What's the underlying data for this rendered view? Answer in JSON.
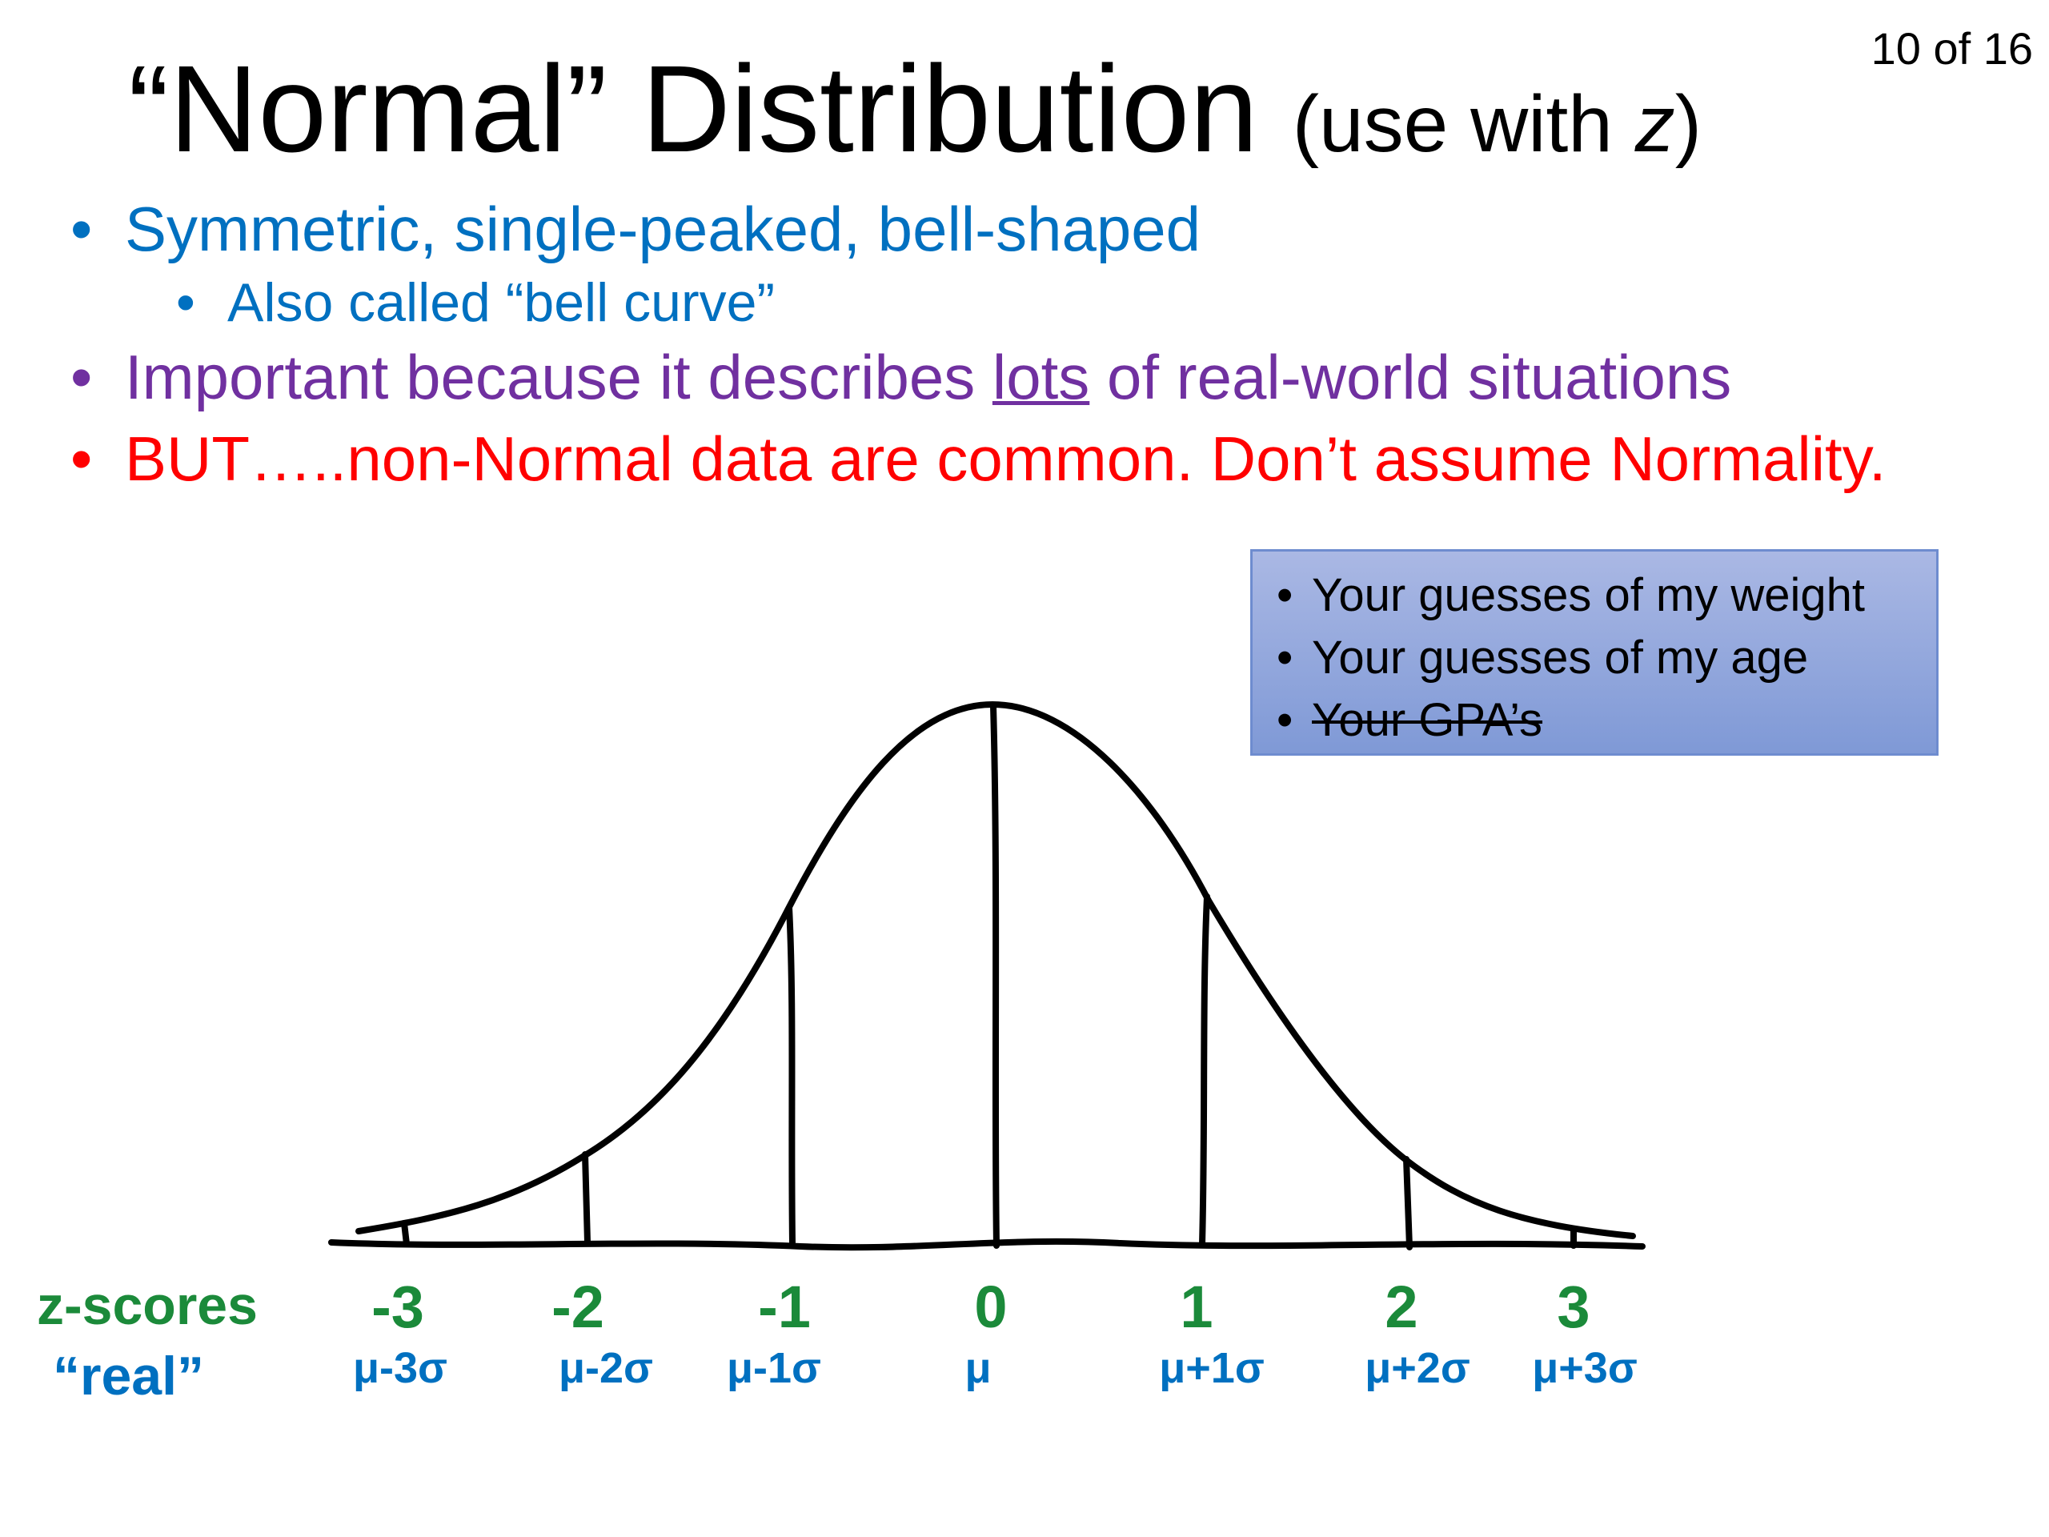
{
  "slide_number": "10 of 16",
  "title": {
    "main": "“Normal” Distribution",
    "sub_open": "(use with ",
    "sub_var": "z",
    "sub_close": ")"
  },
  "bullets": {
    "b1": "Symmetric, single-peaked, bell-shaped",
    "b1_sub": "Also called “bell curve”",
    "b2_pre": "Important because it describes ",
    "b2_u": "lots",
    "b2_post": " of real-world situations",
    "b3": "BUT…..non-Normal data are common. Don’t assume Normality."
  },
  "examples": [
    "Your guesses of my weight",
    "Your guesses of my age",
    "Your GPA’s"
  ],
  "axis": {
    "z_row_label": "z-scores",
    "real_row_label": "“real”",
    "z_values": [
      "-3",
      "-2",
      "-1",
      "0",
      "1",
      "2",
      "3"
    ],
    "real_values": [
      "μ-3σ",
      "μ-2σ",
      "μ-1σ",
      "μ",
      "μ+1σ",
      "μ+2σ",
      "μ+3σ"
    ]
  },
  "colors": {
    "title": "#000000",
    "bullet_blue": "#0070C0",
    "bullet_purple": "#7030A0",
    "bullet_red": "#FF0000",
    "zscore_green": "#1B8A3A",
    "box_fill": "#8FA6DC"
  }
}
